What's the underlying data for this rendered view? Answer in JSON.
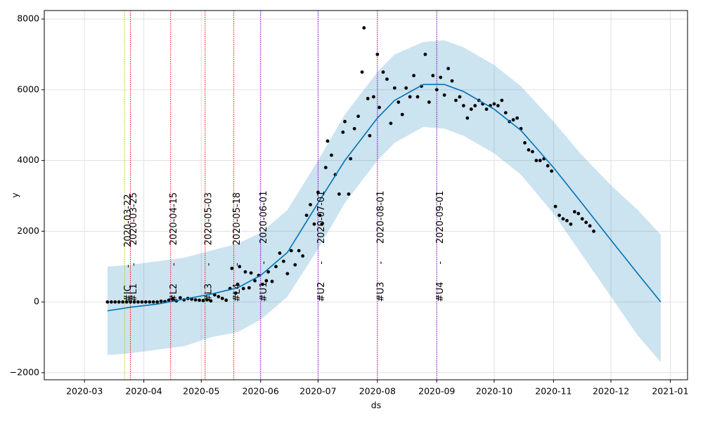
{
  "chart_data": {
    "type": "forecast",
    "x_label": "ds",
    "y_label": "y",
    "grid": true,
    "xlim": [
      "2020-02-09",
      "2021-01-10"
    ],
    "ylim": [
      -2200,
      8240
    ],
    "xticks": [
      {
        "value": "2020-03-01",
        "label": "2020-03"
      },
      {
        "value": "2020-04-01",
        "label": "2020-04"
      },
      {
        "value": "2020-05-01",
        "label": "2020-05"
      },
      {
        "value": "2020-06-01",
        "label": "2020-06"
      },
      {
        "value": "2020-07-01",
        "label": "2020-07"
      },
      {
        "value": "2020-08-01",
        "label": "2020-08"
      },
      {
        "value": "2020-09-01",
        "label": "2020-09"
      },
      {
        "value": "2020-10-01",
        "label": "2020-10"
      },
      {
        "value": "2020-11-01",
        "label": "2020-11"
      },
      {
        "value": "2020-12-01",
        "label": "2020-12"
      },
      {
        "value": "2021-01-01",
        "label": "2021-01"
      }
    ],
    "yticks": [
      {
        "value": -2000,
        "label": "−2000"
      },
      0,
      2000,
      4000,
      6000,
      8000
    ],
    "points": {
      "color": "#000000",
      "x": [
        "2020-03-13",
        "2020-03-15",
        "2020-03-17",
        "2020-03-19",
        "2020-03-21",
        "2020-03-23",
        "2020-03-25",
        "2020-03-27",
        "2020-03-29",
        "2020-03-31",
        "2020-04-02",
        "2020-04-04",
        "2020-04-06",
        "2020-04-08",
        "2020-04-10",
        "2020-04-12",
        "2020-04-14",
        "2020-04-16",
        "2020-04-18",
        "2020-04-20",
        "2020-04-22",
        "2020-04-24",
        "2020-04-26",
        "2020-04-28",
        "2020-04-30",
        "2020-05-02",
        "2020-05-04",
        "2020-05-06",
        "2020-05-08",
        "2020-05-10",
        "2020-05-12",
        "2020-05-14",
        "2020-05-16",
        "2020-05-17",
        "2020-05-19",
        "2020-05-20",
        "2020-05-21",
        "2020-05-23",
        "2020-05-24",
        "2020-05-26",
        "2020-05-27",
        "2020-05-29",
        "2020-05-31",
        "2020-06-02",
        "2020-06-04",
        "2020-06-05",
        "2020-06-07",
        "2020-06-09",
        "2020-06-11",
        "2020-06-13",
        "2020-06-15",
        "2020-06-17",
        "2020-06-19",
        "2020-06-21",
        "2020-06-23",
        "2020-06-25",
        "2020-06-27",
        "2020-06-29",
        "2020-07-01",
        "2020-07-02",
        "2020-07-03",
        "2020-07-05",
        "2020-07-06",
        "2020-07-08",
        "2020-07-10",
        "2020-07-12",
        "2020-07-14",
        "2020-07-15",
        "2020-07-17",
        "2020-07-18",
        "2020-07-20",
        "2020-07-22",
        "2020-07-24",
        "2020-07-25",
        "2020-07-27",
        "2020-07-28",
        "2020-07-30",
        "2020-08-01",
        "2020-08-02",
        "2020-08-04",
        "2020-08-06",
        "2020-08-08",
        "2020-08-10",
        "2020-08-12",
        "2020-08-14",
        "2020-08-16",
        "2020-08-18",
        "2020-08-20",
        "2020-08-22",
        "2020-08-24",
        "2020-08-26",
        "2020-08-28",
        "2020-08-30",
        "2020-09-01",
        "2020-09-03",
        "2020-09-05",
        "2020-09-07",
        "2020-09-09",
        "2020-09-11",
        "2020-09-13",
        "2020-09-15",
        "2020-09-17",
        "2020-09-19",
        "2020-09-21",
        "2020-09-23",
        "2020-09-25",
        "2020-09-27",
        "2020-09-29",
        "2020-10-01",
        "2020-10-03",
        "2020-10-05",
        "2020-10-07",
        "2020-10-09",
        "2020-10-11",
        "2020-10-13",
        "2020-10-15",
        "2020-10-17",
        "2020-10-19",
        "2020-10-21",
        "2020-10-23",
        "2020-10-25",
        "2020-10-27",
        "2020-10-29",
        "2020-10-31",
        "2020-11-02",
        "2020-11-04",
        "2020-11-06",
        "2020-11-08",
        "2020-11-10",
        "2020-11-12",
        "2020-11-14",
        "2020-11-16",
        "2020-11-18",
        "2020-11-20",
        "2020-11-22"
      ],
      "values": [
        0,
        0,
        0,
        0,
        0,
        0,
        0,
        0,
        0,
        0,
        0,
        0,
        0,
        0,
        20,
        10,
        50,
        80,
        30,
        120,
        60,
        100,
        80,
        60,
        50,
        40,
        60,
        30,
        200,
        150,
        100,
        50,
        380,
        950,
        250,
        500,
        1000,
        380,
        850,
        400,
        820,
        600,
        750,
        500,
        600,
        850,
        580,
        1000,
        1380,
        1150,
        800,
        1450,
        1050,
        1450,
        1300,
        2450,
        2750,
        2200,
        3100,
        2450,
        2200,
        3800,
        4550,
        4150,
        3600,
        3050,
        4800,
        5100,
        3050,
        4050,
        4900,
        5250,
        6500,
        7750,
        5750,
        4700,
        5800,
        7000,
        5500,
        6500,
        6300,
        5050,
        6050,
        5650,
        5300,
        6050,
        5800,
        6400,
        5800,
        6100,
        7000,
        5650,
        6400,
        6000,
        6350,
        5850,
        6600,
        6250,
        5700,
        5800,
        5550,
        5200,
        5450,
        5550,
        5700,
        5600,
        5450,
        5550,
        5600,
        5550,
        5700,
        5350,
        5100,
        5150,
        5200,
        4900,
        4500,
        4300,
        4250,
        4000,
        4000,
        4050,
        3850,
        3700,
        2700,
        2450,
        2350,
        2300,
        2200,
        2550,
        2500,
        2350,
        2250,
        2150,
        2000
      ]
    },
    "forecast": {
      "color": "#0072B2",
      "band_color": "#0072B2",
      "x": [
        "2020-03-13",
        "2020-03-25",
        "2020-04-08",
        "2020-04-22",
        "2020-05-06",
        "2020-05-20",
        "2020-06-01",
        "2020-06-15",
        "2020-07-01",
        "2020-07-15",
        "2020-08-01",
        "2020-08-10",
        "2020-08-25",
        "2020-09-05",
        "2020-09-15",
        "2020-10-01",
        "2020-10-15",
        "2020-11-01",
        "2020-11-15",
        "2020-12-01",
        "2020-12-15",
        "2020-12-27"
      ],
      "values": [
        -250,
        -150,
        -60,
        80,
        220,
        400,
        750,
        1400,
        2800,
        4000,
        5200,
        5700,
        6150,
        6150,
        5950,
        5450,
        4850,
        3800,
        2850,
        1750,
        800,
        0
      ],
      "lower": [
        -1500,
        -1450,
        -1350,
        -1250,
        -1000,
        -850,
        -500,
        150,
        1500,
        2800,
        4000,
        4500,
        4950,
        4900,
        4700,
        4200,
        3600,
        2500,
        1400,
        150,
        -950,
        -1700
      ],
      "upper": [
        1000,
        1050,
        1150,
        1250,
        1450,
        1650,
        1950,
        2600,
        4000,
        5300,
        6500,
        7000,
        7350,
        7400,
        7200,
        6700,
        6100,
        5100,
        4200,
        3300,
        2600,
        1900
      ]
    },
    "vlines": [
      {
        "x": "2020-03-22",
        "label": "#IC      -      2020-03-22",
        "color": "#bcbd22"
      },
      {
        "x": "2020-03-25",
        "label": "#L1      -      2020-03-25",
        "color": "#ff0000"
      },
      {
        "x": "2020-04-15",
        "label": "#L2      -      2020-04-15",
        "color": "#ff0000"
      },
      {
        "x": "2020-05-03",
        "label": "#L3      -      2020-05-03",
        "color": "#ff0000"
      },
      {
        "x": "2020-05-18",
        "label": "#L4      -      2020-05-18",
        "color": "#ff0000"
      },
      {
        "x": "2020-06-01",
        "label": "#U1      -      2020-06-01",
        "color": "#9400d3"
      },
      {
        "x": "2020-07-01",
        "label": "#U2      -      2020-07-01",
        "color": "#9400d3"
      },
      {
        "x": "2020-08-01",
        "label": "#U3      -      2020-08-01",
        "color": "#9400d3"
      },
      {
        "x": "2020-09-01",
        "label": "#U4      -      2020-09-01",
        "color": "#9400d3"
      }
    ]
  }
}
